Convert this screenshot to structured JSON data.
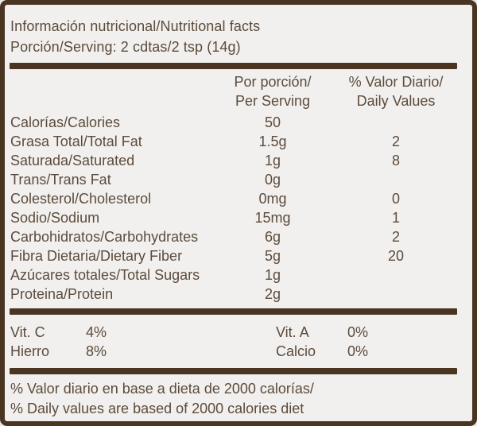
{
  "label": {
    "title": "Información nutricional/Nutritional facts",
    "serving": "Porción/Serving: 2 cdtas/2 tsp (14g)",
    "columns": {
      "per_serving": "Por porción/\nPer Serving",
      "daily_value": "% Valor Diario/\nDaily Values"
    },
    "rows": [
      {
        "name": "Calorías/Calories",
        "amount": "50",
        "dv": ""
      },
      {
        "name": "Grasa Total/Total Fat",
        "amount": "1.5g",
        "dv": "2"
      },
      {
        "name": "Saturada/Saturated",
        "amount": "1g",
        "dv": "8"
      },
      {
        "name": "Trans/Trans Fat",
        "amount": "0g",
        "dv": ""
      },
      {
        "name": "Colesterol/Cholesterol",
        "amount": "0mg",
        "dv": "0"
      },
      {
        "name": "Sodio/Sodium",
        "amount": "15mg",
        "dv": "1"
      },
      {
        "name": "Carbohidratos/Carbohydrates",
        "amount": "6g",
        "dv": "2"
      },
      {
        "name": "Fibra Dietaria/Dietary Fiber",
        "amount": "5g",
        "dv": "20"
      },
      {
        "name": "Azúcares totales/Total Sugars",
        "amount": "1g",
        "dv": ""
      },
      {
        "name": "Proteina/Protein",
        "amount": "2g",
        "dv": ""
      }
    ],
    "micronutrients": [
      {
        "name": "Vit. C",
        "value": "4%"
      },
      {
        "name": "Hierro",
        "value": "8%"
      },
      {
        "name": "Vit. A",
        "value": "0%"
      },
      {
        "name": "Calcio",
        "value": "0%"
      }
    ],
    "footnote_line1": "% Valor diario en base a dieta de 2000 calorías/",
    "footnote_line2": "% Daily values are based of 2000 calories diet",
    "colors": {
      "border_and_bars": "#4a3523",
      "text": "#5c4b3c",
      "background": "#f1f0ee"
    }
  }
}
